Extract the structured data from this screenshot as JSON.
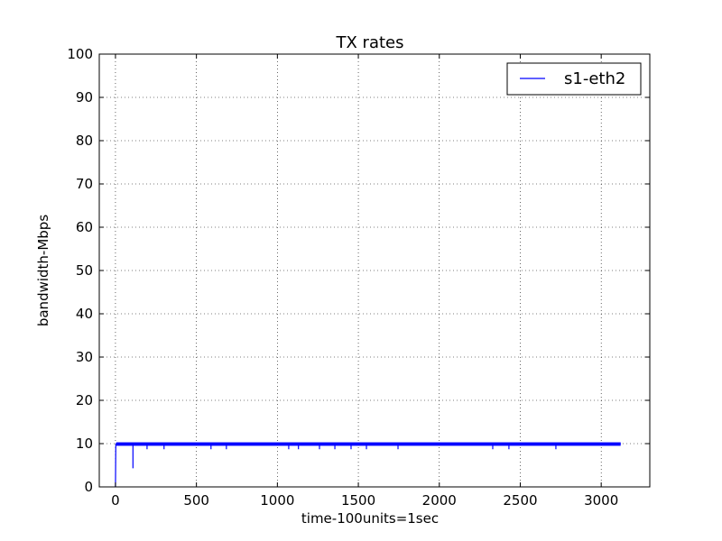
{
  "chart_data": {
    "type": "line",
    "title": "TX rates",
    "xlabel": "time-100units=1sec",
    "ylabel": "bandwidth-Mbps",
    "xlim": [
      -100,
      3300
    ],
    "ylim": [
      0,
      100
    ],
    "xticks": [
      0,
      500,
      1000,
      1500,
      2000,
      2500,
      3000
    ],
    "yticks": [
      0,
      10,
      20,
      30,
      40,
      50,
      60,
      70,
      80,
      90,
      100
    ],
    "grid": true,
    "legend_position": "top-right",
    "series": [
      {
        "name": "s1-eth2",
        "color": "#0000ff",
        "x_range": [
          0,
          3120
        ],
        "baseline": 10,
        "band": [
          9.5,
          10.3
        ],
        "start": [
          [
            0,
            0
          ],
          [
            2,
            9.6
          ],
          [
            5,
            10
          ]
        ],
        "dips": [
          [
            108,
            4.3
          ],
          [
            195,
            8.7
          ],
          [
            300,
            8.7
          ],
          [
            590,
            8.7
          ],
          [
            685,
            8.7
          ],
          [
            1070,
            8.7
          ],
          [
            1130,
            8.7
          ],
          [
            1260,
            8.7
          ],
          [
            1355,
            8.7
          ],
          [
            1455,
            8.7
          ],
          [
            1550,
            8.7
          ],
          [
            1745,
            8.7
          ],
          [
            2330,
            8.7
          ],
          [
            2430,
            8.7
          ],
          [
            2720,
            8.7
          ]
        ]
      }
    ]
  }
}
